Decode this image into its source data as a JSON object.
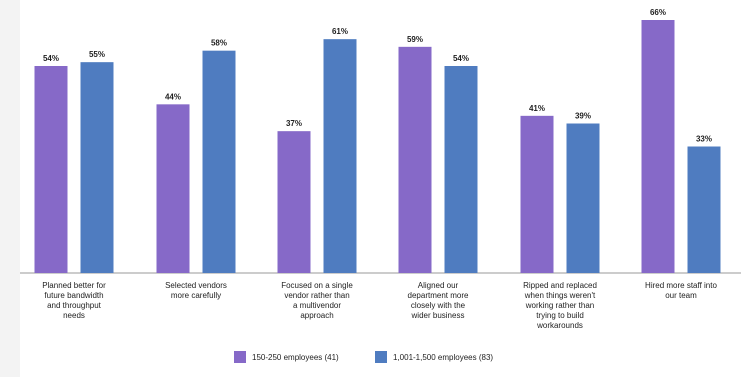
{
  "chart_data": {
    "type": "bar",
    "categories": [
      [
        "Planned better for",
        "future bandwidth",
        "and throughput",
        "needs"
      ],
      [
        "Selected vendors",
        "more carefully"
      ],
      [
        "Focused on a single",
        "vendor rather than",
        "a multivendor",
        "approach"
      ],
      [
        "Aligned our",
        "department more",
        "closely with the",
        "wider business"
      ],
      [
        "Ripped and replaced",
        "when things weren't",
        "working rather than",
        "trying to build",
        "workarounds"
      ],
      [
        "Hired more staff into",
        "our team"
      ]
    ],
    "series": [
      {
        "name": "150-250 employees (41)",
        "color": "#8669c8",
        "values": [
          54,
          44,
          37,
          59,
          41,
          66
        ]
      },
      {
        "name": "1,001-1,500 employees (83)",
        "color": "#4f7cc0",
        "values": [
          55,
          58,
          61,
          54,
          39,
          33
        ]
      }
    ],
    "value_suffix": "%",
    "ylim": [
      0,
      66
    ],
    "grid": false,
    "legend_position": "bottom-center",
    "axis_color": "#9a9a9a"
  }
}
